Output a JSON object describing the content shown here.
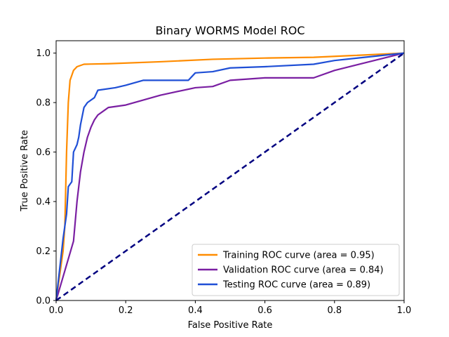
{
  "chart_data": {
    "type": "line",
    "title": "Binary WORMS Model ROC",
    "xlabel": "False Positive Rate",
    "ylabel": "True Positive Rate",
    "xlim": [
      0.0,
      1.0
    ],
    "ylim": [
      0.0,
      1.05
    ],
    "xticks": [
      "0.0",
      "0.2",
      "0.4",
      "0.6",
      "0.8",
      "1.0"
    ],
    "yticks": [
      "0.0",
      "0.2",
      "0.4",
      "0.6",
      "0.8",
      "1.0"
    ],
    "grid": false,
    "legend_position": "lower-right",
    "series": [
      {
        "name": "Training ROC curve (area = 0.95)",
        "color": "#ff8c00",
        "style": "solid",
        "points": [
          [
            0.0,
            0.0
          ],
          [
            0.02,
            0.2
          ],
          [
            0.025,
            0.3
          ],
          [
            0.03,
            0.6
          ],
          [
            0.035,
            0.8
          ],
          [
            0.04,
            0.89
          ],
          [
            0.045,
            0.91
          ],
          [
            0.05,
            0.93
          ],
          [
            0.06,
            0.945
          ],
          [
            0.08,
            0.955
          ],
          [
            0.15,
            0.957
          ],
          [
            0.3,
            0.965
          ],
          [
            0.45,
            0.975
          ],
          [
            0.6,
            0.98
          ],
          [
            0.74,
            0.983
          ],
          [
            0.85,
            0.99
          ],
          [
            1.0,
            1.0
          ]
        ]
      },
      {
        "name": "Validation ROC curve (area = 0.84)",
        "color": "#7a1fa2",
        "style": "solid",
        "points": [
          [
            0.0,
            0.0
          ],
          [
            0.05,
            0.24
          ],
          [
            0.06,
            0.4
          ],
          [
            0.07,
            0.52
          ],
          [
            0.08,
            0.6
          ],
          [
            0.09,
            0.66
          ],
          [
            0.1,
            0.7
          ],
          [
            0.11,
            0.73
          ],
          [
            0.12,
            0.75
          ],
          [
            0.14,
            0.77
          ],
          [
            0.15,
            0.78
          ],
          [
            0.2,
            0.79
          ],
          [
            0.25,
            0.81
          ],
          [
            0.3,
            0.83
          ],
          [
            0.4,
            0.86
          ],
          [
            0.45,
            0.865
          ],
          [
            0.5,
            0.89
          ],
          [
            0.6,
            0.9
          ],
          [
            0.74,
            0.9
          ],
          [
            0.8,
            0.93
          ],
          [
            1.0,
            1.0
          ]
        ]
      },
      {
        "name": "Testing ROC curve (area = 0.89)",
        "color": "#1f4fd6",
        "style": "solid",
        "points": [
          [
            0.0,
            0.0
          ],
          [
            0.02,
            0.25
          ],
          [
            0.03,
            0.35
          ],
          [
            0.035,
            0.46
          ],
          [
            0.045,
            0.48
          ],
          [
            0.05,
            0.6
          ],
          [
            0.06,
            0.63
          ],
          [
            0.065,
            0.66
          ],
          [
            0.07,
            0.71
          ],
          [
            0.08,
            0.78
          ],
          [
            0.09,
            0.8
          ],
          [
            0.11,
            0.82
          ],
          [
            0.12,
            0.85
          ],
          [
            0.17,
            0.86
          ],
          [
            0.2,
            0.87
          ],
          [
            0.25,
            0.89
          ],
          [
            0.38,
            0.89
          ],
          [
            0.4,
            0.92
          ],
          [
            0.45,
            0.925
          ],
          [
            0.5,
            0.94
          ],
          [
            0.6,
            0.945
          ],
          [
            0.74,
            0.955
          ],
          [
            0.8,
            0.97
          ],
          [
            1.0,
            1.0
          ]
        ]
      },
      {
        "name": "",
        "color": "#000080",
        "style": "dashed",
        "points": [
          [
            0.0,
            0.0
          ],
          [
            1.0,
            1.0
          ]
        ]
      }
    ]
  }
}
